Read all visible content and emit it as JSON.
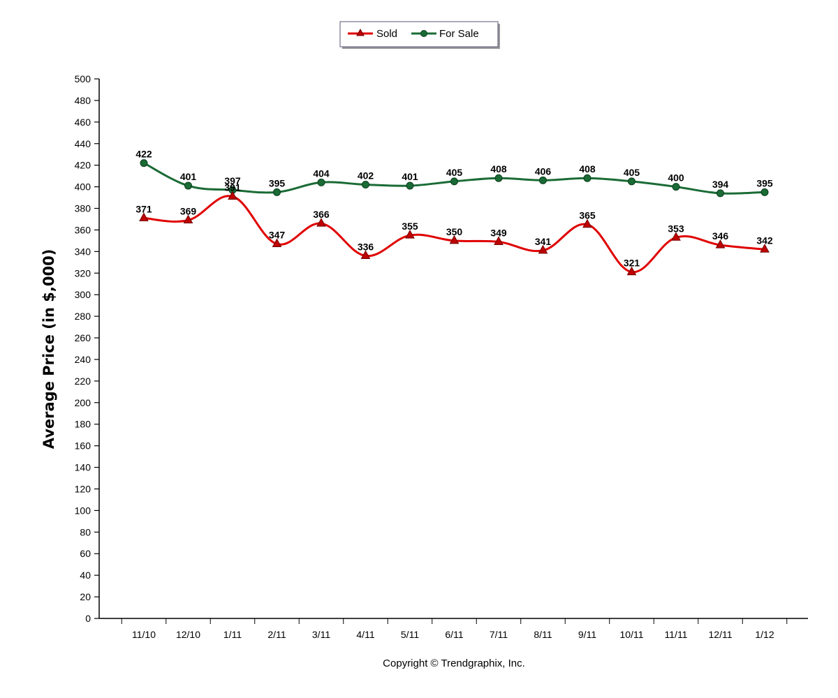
{
  "chart_data": {
    "type": "line",
    "title": "",
    "xlabel": "",
    "ylabel": "Average Price (in $,000)",
    "categories": [
      "11/10",
      "12/10",
      "1/11",
      "2/11",
      "3/11",
      "4/11",
      "5/11",
      "6/11",
      "7/11",
      "8/11",
      "9/11",
      "10/11",
      "11/11",
      "12/11",
      "1/12"
    ],
    "ylim": [
      0,
      500
    ],
    "yticks": [
      0,
      20,
      40,
      60,
      80,
      100,
      120,
      140,
      160,
      180,
      200,
      220,
      240,
      260,
      280,
      300,
      320,
      340,
      360,
      380,
      400,
      420,
      440,
      460,
      480,
      500
    ],
    "grid": false,
    "legend_position": "top-center",
    "series": [
      {
        "name": "Sold",
        "color": "#e00000",
        "marker": "triangle",
        "values": [
          371,
          369,
          391,
          347,
          366,
          336,
          355,
          350,
          349,
          341,
          365,
          321,
          353,
          346,
          342
        ]
      },
      {
        "name": "For Sale",
        "color": "#1a6b35",
        "marker": "circle",
        "values": [
          422,
          401,
          397,
          395,
          404,
          402,
          401,
          405,
          408,
          406,
          408,
          405,
          400,
          394,
          395
        ]
      }
    ]
  },
  "footer": {
    "copyright": "Copyright © Trendgraphix, Inc."
  }
}
